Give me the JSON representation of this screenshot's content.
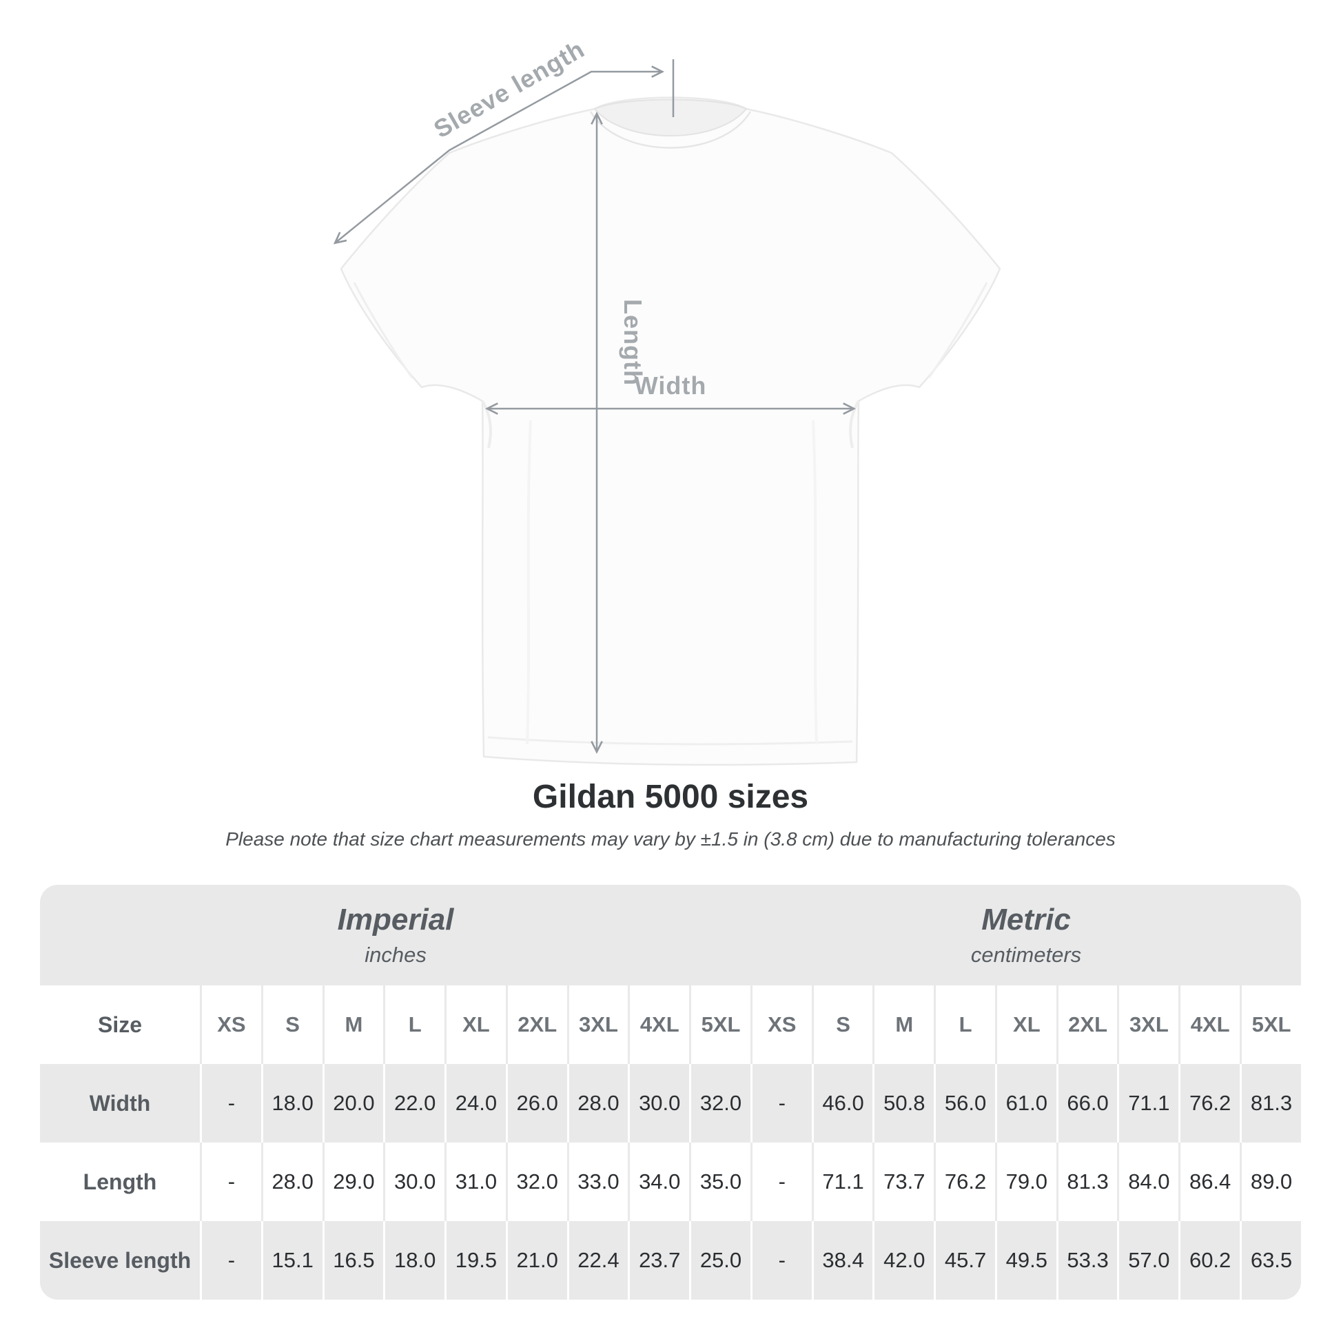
{
  "diagram": {
    "labels": {
      "sleeve_length": "Sleeve length",
      "length": "Length",
      "width": "Width"
    },
    "colors": {
      "annotation_line": "#949aa0",
      "annotation_text": "#a4a9ad",
      "shirt_fill": "#fcfcfc",
      "shirt_outline": "#e9e9e9"
    }
  },
  "title": "Gildan 5000 sizes",
  "subtitle": "Please note that size chart measurements may vary by ±1.5 in (3.8 cm) due to manufacturing tolerances",
  "table": {
    "unit_groups": [
      {
        "name": "Imperial",
        "unit": "inches"
      },
      {
        "name": "Metric",
        "unit": "centimeters"
      }
    ],
    "size_column_header": "Size",
    "sizes": [
      "XS",
      "S",
      "M",
      "L",
      "XL",
      "2XL",
      "3XL",
      "4XL",
      "5XL"
    ],
    "rows": [
      {
        "label": "Width",
        "imperial": [
          "-",
          "18.0",
          "20.0",
          "22.0",
          "24.0",
          "26.0",
          "28.0",
          "30.0",
          "32.0"
        ],
        "metric": [
          "-",
          "46.0",
          "50.8",
          "56.0",
          "61.0",
          "66.0",
          "71.1",
          "76.2",
          "81.3"
        ]
      },
      {
        "label": "Length",
        "imperial": [
          "-",
          "28.0",
          "29.0",
          "30.0",
          "31.0",
          "32.0",
          "33.0",
          "34.0",
          "35.0"
        ],
        "metric": [
          "-",
          "71.1",
          "73.7",
          "76.2",
          "79.0",
          "81.3",
          "84.0",
          "86.4",
          "89.0"
        ]
      },
      {
        "label": "Sleeve length",
        "imperial": [
          "-",
          "15.1",
          "16.5",
          "18.0",
          "19.5",
          "21.0",
          "22.4",
          "23.7",
          "25.0"
        ],
        "metric": [
          "-",
          "38.4",
          "42.0",
          "45.7",
          "49.5",
          "53.3",
          "57.0",
          "60.2",
          "63.5"
        ]
      }
    ],
    "colors": {
      "shaded_row": "#e9e9e9"
    }
  }
}
